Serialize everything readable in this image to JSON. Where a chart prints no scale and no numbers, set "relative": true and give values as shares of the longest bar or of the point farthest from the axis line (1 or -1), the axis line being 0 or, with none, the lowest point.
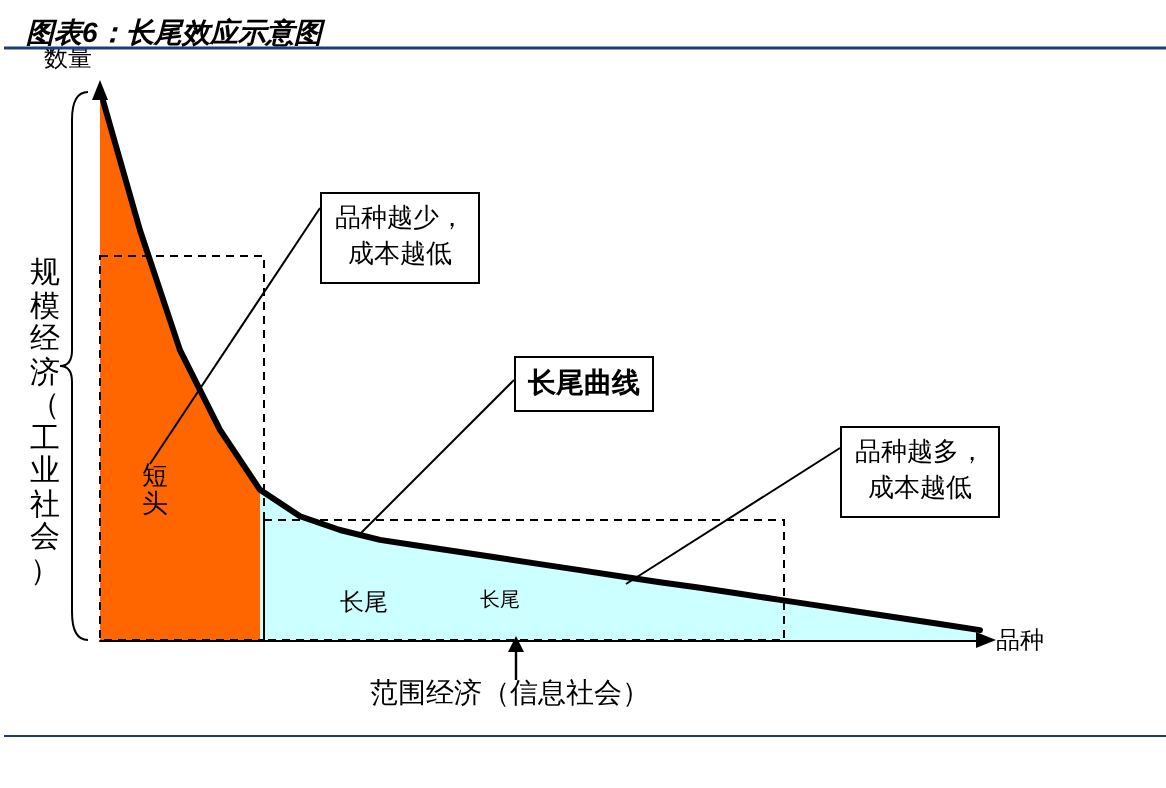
{
  "chart_data": {
    "type": "area",
    "title": "图表6：长尾效应示意图",
    "xlabel": "品种",
    "ylabel": "数量",
    "relative": true,
    "marker": "none",
    "categories": [
      null,
      null,
      null,
      null,
      null,
      null,
      null,
      null,
      null,
      null,
      null,
      null,
      null,
      null,
      null,
      null,
      null,
      null,
      null,
      null,
      null,
      null,
      null
    ],
    "series": [
      {
        "color": "#ff6600",
        "values": [
          1.0,
          0.745,
          0.527,
          0.382,
          0.273,
          null,
          null,
          null,
          null,
          null,
          null,
          null,
          null,
          null,
          null,
          null,
          null,
          null,
          null,
          null,
          null,
          null,
          null
        ]
      },
      {
        "type": "area",
        "color": "#ccffff",
        "values": [
          null,
          null,
          null,
          null,
          0.273,
          0.225,
          0.2,
          0.182,
          0.171,
          0.16,
          0.149,
          0.138,
          0.127,
          0.116,
          0.105,
          0.095,
          0.084,
          0.073,
          0.062,
          0.051,
          0.04,
          0.029,
          0.018
        ]
      },
      {
        "type": "line",
        "color": "#000000",
        "values": [
          1.0,
          0.745,
          0.527,
          0.382,
          0.273,
          0.225,
          0.2,
          0.182,
          0.171,
          0.16,
          0.149,
          0.138,
          0.127,
          0.116,
          0.105,
          0.095,
          0.084,
          0.073,
          0.062,
          0.051,
          0.04,
          0.029,
          0.018
        ]
      }
    ],
    "annotations": [
      "规模经济（工业社会）",
      "短头",
      "长尾",
      "长尾",
      "品种越少，成本越低",
      "长尾曲线",
      "品种越多，成本越低",
      "范围经济（信息社会）"
    ]
  }
}
